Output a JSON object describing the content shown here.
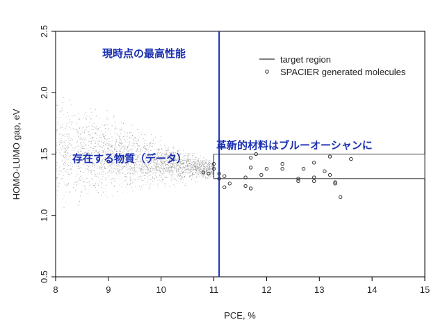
{
  "chart_data": {
    "type": "scatter",
    "xlabel": "PCE, %",
    "ylabel": "HOMO-LUMO gap, eV",
    "xlim": [
      8,
      15
    ],
    "ylim": [
      0.5,
      2.5
    ],
    "x_ticks": [
      "8",
      "9",
      "10",
      "11",
      "12",
      "13",
      "14",
      "15"
    ],
    "y_ticks": [
      "0.5",
      "1.0",
      "1.5",
      "2.0",
      "2.5"
    ],
    "vertical_line": {
      "x": 11.1,
      "color": "#1a2fb0"
    },
    "target_region": {
      "x": [
        11.0,
        15.0
      ],
      "y": [
        1.3,
        1.5
      ]
    },
    "existing_cloud": {
      "description_visible": false,
      "x_range": [
        8.0,
        11.0
      ],
      "y_at_x8": [
        1.0,
        2.08
      ],
      "y_at_x11": [
        1.3,
        1.45
      ],
      "color": "#888888"
    },
    "legend": {
      "position": "top-right",
      "items": [
        {
          "label": "target region",
          "symbol": "line"
        },
        {
          "label": "SPACIER generated molecules",
          "symbol": "circle"
        }
      ]
    },
    "series": [
      {
        "name": "SPACIER generated molecules",
        "points": [
          [
            10.8,
            1.35
          ],
          [
            10.9,
            1.34
          ],
          [
            11.0,
            1.42
          ],
          [
            11.0,
            1.38
          ],
          [
            11.1,
            1.3
          ],
          [
            11.1,
            1.34
          ],
          [
            11.2,
            1.32
          ],
          [
            11.2,
            1.23
          ],
          [
            11.3,
            1.26
          ],
          [
            11.6,
            1.31
          ],
          [
            11.6,
            1.24
          ],
          [
            11.7,
            1.22
          ],
          [
            11.7,
            1.39
          ],
          [
            11.7,
            1.47
          ],
          [
            11.8,
            1.5
          ],
          [
            11.9,
            1.33
          ],
          [
            12.0,
            1.38
          ],
          [
            12.3,
            1.38
          ],
          [
            12.3,
            1.42
          ],
          [
            12.6,
            1.3
          ],
          [
            12.6,
            1.28
          ],
          [
            12.7,
            1.38
          ],
          [
            12.9,
            1.43
          ],
          [
            12.9,
            1.31
          ],
          [
            12.9,
            1.28
          ],
          [
            13.1,
            1.36
          ],
          [
            13.2,
            1.33
          ],
          [
            13.2,
            1.48
          ],
          [
            13.3,
            1.26
          ],
          [
            13.3,
            1.27
          ],
          [
            13.4,
            1.15
          ],
          [
            13.6,
            1.46
          ]
        ]
      }
    ],
    "annotations": {
      "top": "現時点の最高性能",
      "left": "存在する物質（データ）",
      "right": "革新的材料はブルーオーシャンに"
    }
  }
}
